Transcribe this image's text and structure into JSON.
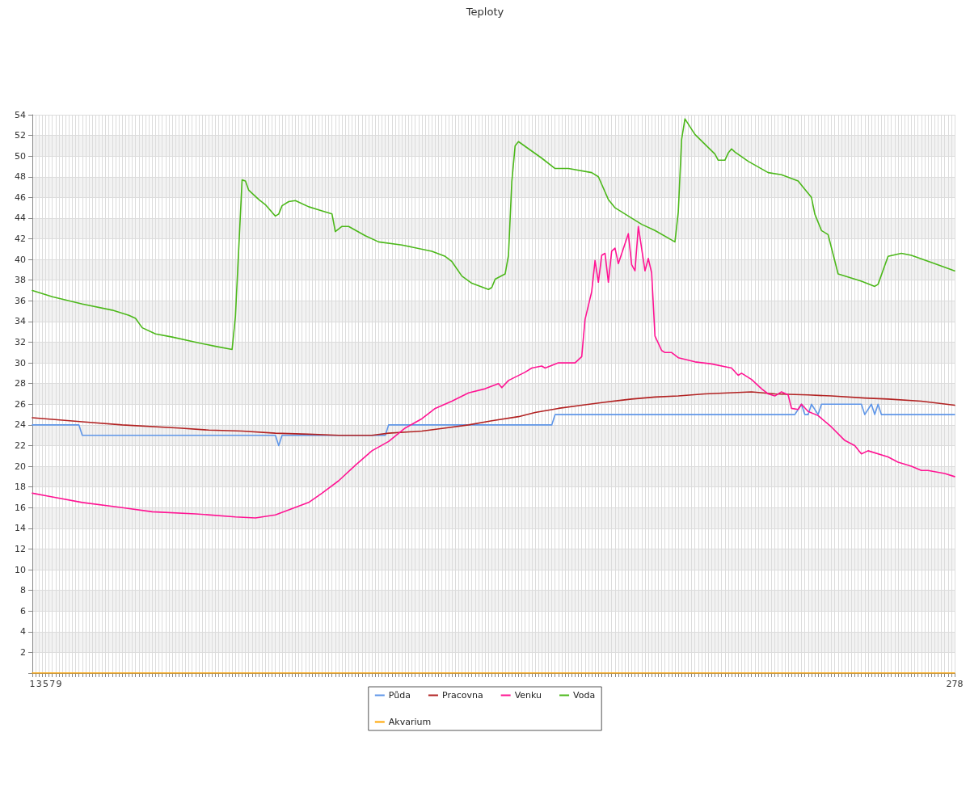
{
  "chart_data": {
    "type": "line",
    "title": "Teploty",
    "xlim": [
      1,
      278
    ],
    "ylim": [
      0,
      54
    ],
    "xticks": [
      1,
      {
        "value": 2,
        "label": null
      },
      3,
      {
        "value": 4,
        "label": null
      },
      5,
      {
        "value": 6,
        "label": null
      },
      7,
      {
        "value": 8,
        "label": null
      },
      9,
      {
        "value": 10,
        "label": null
      },
      {
        "value": 11,
        "label": null
      },
      {
        "value": 12,
        "label": null
      },
      {
        "value": 13,
        "label": null
      },
      {
        "value": 14,
        "label": null
      },
      {
        "value": 15,
        "label": null
      },
      {
        "value": 16,
        "label": null
      },
      {
        "value": 17,
        "label": null
      },
      {
        "value": 18,
        "label": null
      },
      {
        "value": 19,
        "label": null
      },
      {
        "value": 20,
        "label": null
      },
      {
        "value": 21,
        "label": null
      },
      {
        "value": 22,
        "label": null
      },
      {
        "value": 23,
        "label": null
      },
      {
        "value": 24,
        "label": null
      },
      {
        "value": 25,
        "label": null
      },
      {
        "value": 26,
        "label": null
      },
      {
        "value": 27,
        "label": null
      },
      {
        "value": 28,
        "label": null
      },
      {
        "value": 29,
        "label": null
      },
      {
        "value": 30,
        "label": null
      },
      {
        "value": 31,
        "label": null
      },
      {
        "value": 32,
        "label": null
      },
      {
        "value": 33,
        "label": null
      },
      {
        "value": 34,
        "label": null
      },
      {
        "value": 35,
        "label": null
      },
      {
        "value": 36,
        "label": null
      },
      {
        "value": 37,
        "label": null
      },
      {
        "value": 38,
        "label": null
      },
      {
        "value": 39,
        "label": null
      },
      {
        "value": 40,
        "label": null
      },
      {
        "value": 41,
        "label": null
      },
      {
        "value": 42,
        "label": null
      },
      {
        "value": 43,
        "label": null
      },
      {
        "value": 44,
        "label": null
      },
      {
        "value": 45,
        "label": null
      },
      {
        "value": 46,
        "label": null
      },
      {
        "value": 47,
        "label": null
      },
      {
        "value": 48,
        "label": null
      },
      {
        "value": 49,
        "label": null
      },
      {
        "value": 50,
        "label": null
      },
      {
        "value": 51,
        "label": null
      },
      {
        "value": 52,
        "label": null
      },
      {
        "value": 53,
        "label": null
      },
      {
        "value": 54,
        "label": null
      },
      {
        "value": 55,
        "label": null
      },
      {
        "value": 56,
        "label": null
      },
      {
        "value": 57,
        "label": null
      },
      {
        "value": 58,
        "label": null
      },
      {
        "value": 59,
        "label": null
      },
      {
        "value": 60,
        "label": null
      },
      {
        "value": 61,
        "label": null
      },
      {
        "value": 62,
        "label": null
      },
      {
        "value": 63,
        "label": null
      },
      {
        "value": 64,
        "label": null
      },
      {
        "value": 65,
        "label": null
      },
      {
        "value": 66,
        "label": null
      },
      {
        "value": 67,
        "label": null
      },
      {
        "value": 68,
        "label": null
      },
      {
        "value": 69,
        "label": null
      },
      {
        "value": 70,
        "label": null
      },
      {
        "value": 71,
        "label": null
      },
      {
        "value": 72,
        "label": null
      },
      {
        "value": 73,
        "label": null
      },
      {
        "value": 74,
        "label": null
      },
      {
        "value": 75,
        "label": null
      },
      {
        "value": 76,
        "label": null
      },
      {
        "value": 77,
        "label": null
      },
      {
        "value": 78,
        "label": null
      },
      {
        "value": 79,
        "label": null
      },
      {
        "value": 80,
        "label": null
      },
      {
        "value": 81,
        "label": null
      },
      {
        "value": 82,
        "label": null
      },
      {
        "value": 83,
        "label": null
      },
      {
        "value": 84,
        "label": null
      },
      {
        "value": 85,
        "label": null
      },
      {
        "value": 86,
        "label": null
      },
      {
        "value": 87,
        "label": null
      },
      {
        "value": 88,
        "label": null
      },
      {
        "value": 89,
        "label": null
      },
      {
        "value": 90,
        "label": null
      },
      {
        "value": 91,
        "label": null
      },
      {
        "value": 92,
        "label": null
      },
      {
        "value": 93,
        "label": null
      },
      {
        "value": 94,
        "label": null
      },
      {
        "value": 95,
        "label": null
      },
      {
        "value": 96,
        "label": null
      },
      {
        "value": 97,
        "label": null
      },
      {
        "value": 98,
        "label": null
      },
      {
        "value": 99,
        "label": null
      },
      {
        "value": 100,
        "label": null
      },
      {
        "value": 101,
        "label": null
      },
      {
        "value": 102,
        "label": null
      },
      {
        "value": 103,
        "label": null
      },
      {
        "value": 104,
        "label": null
      },
      {
        "value": 105,
        "label": null
      },
      {
        "value": 106,
        "label": null
      },
      {
        "value": 107,
        "label": null
      },
      {
        "value": 108,
        "label": null
      },
      {
        "value": 109,
        "label": null
      },
      {
        "value": 110,
        "label": null
      },
      {
        "value": 111,
        "label": null
      },
      {
        "value": 112,
        "label": null
      },
      {
        "value": 113,
        "label": null
      },
      {
        "value": 114,
        "label": null
      },
      {
        "value": 115,
        "label": null
      },
      {
        "value": 116,
        "label": null
      },
      {
        "value": 117,
        "label": null
      },
      {
        "value": 118,
        "label": null
      },
      {
        "value": 119,
        "label": null
      },
      {
        "value": 120,
        "label": null
      },
      {
        "value": 121,
        "label": null
      },
      {
        "value": 122,
        "label": null
      },
      {
        "value": 123,
        "label": null
      },
      {
        "value": 124,
        "label": null
      },
      {
        "value": 125,
        "label": null
      },
      {
        "value": 126,
        "label": null
      },
      {
        "value": 127,
        "label": null
      },
      {
        "value": 128,
        "label": null
      },
      {
        "value": 129,
        "label": null
      },
      {
        "value": 130,
        "label": null
      },
      {
        "value": 131,
        "label": null
      },
      {
        "value": 132,
        "label": null
      },
      {
        "value": 133,
        "label": null
      },
      {
        "value": 134,
        "label": null
      },
      {
        "value": 135,
        "label": null
      },
      {
        "value": 136,
        "label": null
      },
      {
        "value": 137,
        "label": null
      },
      {
        "value": 138,
        "label": null
      },
      {
        "value": 139,
        "label": null
      },
      {
        "value": 140,
        "label": null
      },
      {
        "value": 141,
        "label": null
      },
      {
        "value": 142,
        "label": null
      },
      {
        "value": 143,
        "label": null
      },
      {
        "value": 144,
        "label": null
      },
      {
        "value": 145,
        "label": null
      },
      {
        "value": 146,
        "label": null
      },
      {
        "value": 147,
        "label": null
      },
      {
        "value": 148,
        "label": null
      },
      {
        "value": 149,
        "label": null
      },
      {
        "value": 150,
        "label": null
      },
      {
        "value": 151,
        "label": null
      },
      {
        "value": 152,
        "label": null
      },
      {
        "value": 153,
        "label": null
      },
      {
        "value": 154,
        "label": null
      },
      {
        "value": 155,
        "label": null
      },
      {
        "value": 156,
        "label": null
      },
      {
        "value": 157,
        "label": null
      },
      {
        "value": 158,
        "label": null
      },
      {
        "value": 159,
        "label": null
      },
      {
        "value": 160,
        "label": null
      },
      {
        "value": 161,
        "label": null
      },
      {
        "value": 162,
        "label": null
      },
      {
        "value": 163,
        "label": null
      },
      {
        "value": 164,
        "label": null
      },
      {
        "value": 165,
        "label": null
      },
      {
        "value": 166,
        "label": null
      },
      {
        "value": 167,
        "label": null
      },
      {
        "value": 168,
        "label": null
      },
      {
        "value": 169,
        "label": null
      },
      {
        "value": 170,
        "label": null
      },
      {
        "value": 171,
        "label": null
      },
      {
        "value": 172,
        "label": null
      },
      {
        "value": 173,
        "label": null
      },
      {
        "value": 174,
        "label": null
      },
      {
        "value": 175,
        "label": null
      },
      {
        "value": 176,
        "label": null
      },
      {
        "value": 177,
        "label": null
      },
      {
        "value": 178,
        "label": null
      },
      {
        "value": 179,
        "label": null
      },
      {
        "value": 180,
        "label": null
      },
      {
        "value": 181,
        "label": null
      },
      {
        "value": 182,
        "label": null
      },
      {
        "value": 183,
        "label": null
      },
      {
        "value": 184,
        "label": null
      },
      {
        "value": 185,
        "label": null
      },
      {
        "value": 186,
        "label": null
      },
      {
        "value": 187,
        "label": null
      },
      {
        "value": 188,
        "label": null
      },
      {
        "value": 189,
        "label": null
      },
      {
        "value": 190,
        "label": null
      },
      {
        "value": 191,
        "label": null
      },
      {
        "value": 192,
        "label": null
      },
      {
        "value": 193,
        "label": null
      },
      {
        "value": 194,
        "label": null
      },
      {
        "value": 195,
        "label": null
      },
      {
        "value": 196,
        "label": null
      },
      {
        "value": 197,
        "label": null
      },
      {
        "value": 198,
        "label": null
      },
      {
        "value": 199,
        "label": null
      },
      {
        "value": 200,
        "label": null
      },
      {
        "value": 201,
        "label": null
      },
      {
        "value": 202,
        "label": null
      },
      {
        "value": 203,
        "label": null
      },
      {
        "value": 204,
        "label": null
      },
      {
        "value": 205,
        "label": null
      },
      {
        "value": 206,
        "label": null
      },
      {
        "value": 207,
        "label": null
      },
      {
        "value": 208,
        "label": null
      },
      {
        "value": 209,
        "label": null
      },
      {
        "value": 210,
        "label": null
      },
      {
        "value": 211,
        "label": null
      },
      {
        "value": 212,
        "label": null
      },
      {
        "value": 213,
        "label": null
      },
      {
        "value": 214,
        "label": null
      },
      {
        "value": 215,
        "label": null
      },
      {
        "value": 216,
        "label": null
      },
      {
        "value": 217,
        "label": null
      },
      {
        "value": 218,
        "label": null
      },
      {
        "value": 219,
        "label": null
      },
      {
        "value": 220,
        "label": null
      },
      {
        "value": 221,
        "label": null
      },
      {
        "value": 222,
        "label": null
      },
      {
        "value": 223,
        "label": null
      },
      {
        "value": 224,
        "label": null
      },
      {
        "value": 225,
        "label": null
      },
      {
        "value": 226,
        "label": null
      },
      {
        "value": 227,
        "label": null
      },
      {
        "value": 228,
        "label": null
      },
      {
        "value": 229,
        "label": null
      },
      {
        "value": 230,
        "label": null
      },
      {
        "value": 231,
        "label": null
      },
      {
        "value": 232,
        "label": null
      },
      {
        "value": 233,
        "label": null
      },
      {
        "value": 234,
        "label": null
      },
      {
        "value": 235,
        "label": null
      },
      {
        "value": 236,
        "label": null
      },
      {
        "value": 237,
        "label": null
      },
      {
        "value": 238,
        "label": null
      },
      {
        "value": 239,
        "label": null
      },
      {
        "value": 240,
        "label": null
      },
      {
        "value": 241,
        "label": null
      },
      {
        "value": 242,
        "label": null
      },
      {
        "value": 243,
        "label": null
      },
      {
        "value": 244,
        "label": null
      },
      {
        "value": 245,
        "label": null
      },
      {
        "value": 246,
        "label": null
      },
      {
        "value": 247,
        "label": null
      },
      {
        "value": 248,
        "label": null
      },
      {
        "value": 249,
        "label": null
      },
      {
        "value": 250,
        "label": null
      },
      {
        "value": 251,
        "label": null
      },
      {
        "value": 252,
        "label": null
      },
      {
        "value": 253,
        "label": null
      },
      {
        "value": 254,
        "label": null
      },
      {
        "value": 255,
        "label": null
      },
      {
        "value": 256,
        "label": null
      },
      {
        "value": 257,
        "label": null
      },
      {
        "value": 258,
        "label": null
      },
      {
        "value": 259,
        "label": null
      },
      {
        "value": 260,
        "label": null
      },
      {
        "value": 261,
        "label": null
      },
      {
        "value": 262,
        "label": null
      },
      {
        "value": 263,
        "label": null
      },
      {
        "value": 264,
        "label": null
      },
      {
        "value": 265,
        "label": null
      },
      {
        "value": 266,
        "label": null
      },
      {
        "value": 267,
        "label": null
      },
      {
        "value": 268,
        "label": null
      },
      {
        "value": 269,
        "label": null
      },
      {
        "value": 270,
        "label": null
      },
      {
        "value": 271,
        "label": null
      },
      {
        "value": 272,
        "label": null
      },
      {
        "value": 273,
        "label": null
      },
      {
        "value": 274,
        "label": null
      },
      {
        "value": 275,
        "label": null
      },
      {
        "value": 276,
        "label": null
      },
      {
        "value": 277,
        "label": null
      },
      278
    ],
    "yticks": [
      {
        "value": 0,
        "label": null
      },
      2,
      4,
      6,
      8,
      10,
      12,
      14,
      16,
      18,
      20,
      22,
      24,
      26,
      28,
      30,
      32,
      34,
      36,
      38,
      40,
      42,
      44,
      46,
      48,
      50,
      52,
      54
    ],
    "grid": true,
    "legend": "bottom",
    "marker": "none",
    "line_style": "solid",
    "series": [
      {
        "name": "Půda",
        "color": "#5f96e8",
        "x": [
          1,
          15,
          16,
          74,
          75,
          76,
          107,
          108,
          157,
          158,
          230,
          232,
          233,
          234,
          235,
          237,
          238,
          250,
          251,
          253,
          254,
          255,
          256,
          278
        ],
        "values": [
          24,
          24,
          23,
          23,
          22,
          23,
          23,
          24,
          24,
          25,
          25,
          26,
          25,
          25,
          26,
          25,
          26,
          26,
          25,
          26,
          25,
          26,
          25,
          25
        ]
      },
      {
        "name": "Voda",
        "color": "#4cb81a",
        "x": [
          1,
          7,
          16,
          25,
          30,
          32,
          34,
          38,
          43,
          50,
          56,
          61,
          62,
          64,
          65,
          66,
          69,
          71,
          74,
          75,
          76,
          78,
          80,
          84,
          87,
          91,
          92,
          94,
          96,
          101,
          105,
          112,
          121,
          125,
          127,
          130,
          133,
          138,
          139,
          140,
          143,
          144,
          145,
          146,
          147,
          154,
          158,
          162,
          169,
          171,
          174,
          176,
          184,
          188,
          194,
          195,
          196,
          197,
          200,
          206,
          207,
          209,
          210,
          211,
          212,
          216,
          222,
          226,
          231,
          233,
          235,
          236,
          238,
          240,
          243,
          250,
          254,
          255,
          258,
          262,
          265,
          272,
          278
        ],
        "values": [
          37.0,
          36.4,
          35.7,
          35.1,
          34.6,
          34.3,
          33.4,
          32.8,
          32.5,
          32.0,
          31.6,
          31.3,
          34.5,
          47.7,
          47.6,
          46.7,
          45.8,
          45.3,
          44.2,
          44.4,
          45.2,
          45.6,
          45.7,
          45.1,
          44.8,
          44.4,
          42.7,
          43.2,
          43.2,
          42.3,
          41.7,
          41.4,
          40.8,
          40.3,
          39.8,
          38.4,
          37.7,
          37.1,
          37.3,
          38.1,
          38.6,
          40.4,
          47.5,
          51.0,
          51.4,
          49.8,
          48.8,
          48.8,
          48.4,
          48.0,
          45.8,
          45.0,
          43.4,
          42.8,
          41.7,
          44.6,
          51.6,
          53.6,
          52.1,
          50.2,
          49.6,
          49.6,
          50.3,
          50.7,
          50.4,
          49.5,
          48.4,
          48.2,
          47.6,
          46.8,
          46.0,
          44.4,
          42.8,
          42.4,
          38.6,
          37.9,
          37.4,
          37.6,
          40.3,
          40.6,
          40.4,
          39.6,
          38.9
        ]
      },
      {
        "name": "Pracovna",
        "color": "#b22222",
        "x": [
          1,
          16,
          28,
          45,
          54,
          64,
          74,
          84,
          93,
          103,
          108,
          118,
          125,
          132,
          139,
          147,
          152,
          159,
          166,
          173,
          181,
          188,
          195,
          203,
          210,
          217,
          224,
          234,
          241,
          251,
          258,
          268,
          278
        ],
        "values": [
          24.7,
          24.3,
          24.0,
          23.7,
          23.5,
          23.4,
          23.2,
          23.1,
          23.0,
          23.0,
          23.2,
          23.4,
          23.7,
          24.0,
          24.4,
          24.8,
          25.2,
          25.6,
          25.9,
          26.2,
          26.5,
          26.7,
          26.8,
          27.0,
          27.1,
          27.2,
          27.0,
          26.9,
          26.8,
          26.6,
          26.5,
          26.3,
          25.9
        ]
      },
      {
        "name": "Akvarium",
        "color": "#ffa500",
        "x": [
          1,
          278
        ],
        "values": [
          0,
          0
        ]
      },
      {
        "name": "Venku",
        "color": "#ff1493",
        "x": [
          1,
          6,
          16,
          28,
          37,
          50,
          62,
          68,
          74,
          79,
          84,
          88,
          93,
          98,
          103,
          108,
          113,
          118,
          122,
          127,
          132,
          137,
          141,
          142,
          144,
          149,
          151,
          154,
          155,
          159,
          164,
          166,
          167,
          169,
          170,
          171,
          172,
          173,
          174,
          175,
          176,
          177,
          180,
          181,
          182,
          183,
          185,
          186,
          187,
          188,
          190,
          191,
          193,
          195,
          200,
          205,
          211,
          213,
          214,
          217,
          220,
          222,
          224,
          226,
          228,
          229,
          231,
          232,
          234,
          237,
          241,
          245,
          248,
          250,
          252,
          258,
          261,
          265,
          268,
          270,
          275,
          278
        ],
        "values": [
          17.4,
          17.1,
          16.5,
          16.0,
          15.6,
          15.4,
          15.1,
          15.0,
          15.3,
          15.9,
          16.5,
          17.4,
          18.6,
          20.1,
          21.5,
          22.4,
          23.7,
          24.6,
          25.6,
          26.3,
          27.1,
          27.5,
          28.0,
          27.6,
          28.3,
          29.1,
          29.5,
          29.7,
          29.5,
          30.0,
          30.0,
          30.6,
          34.2,
          36.9,
          39.9,
          37.8,
          40.4,
          40.6,
          37.8,
          40.8,
          41.1,
          39.6,
          42.5,
          39.5,
          38.9,
          43.2,
          38.9,
          40.1,
          38.7,
          32.6,
          31.2,
          31.0,
          31.0,
          30.5,
          30.1,
          29.9,
          29.5,
          28.8,
          29.0,
          28.4,
          27.5,
          27.0,
          26.8,
          27.2,
          26.9,
          25.6,
          25.5,
          26.0,
          25.3,
          24.9,
          23.8,
          22.5,
          22.0,
          21.2,
          21.5,
          20.9,
          20.4,
          20.0,
          19.6,
          19.6,
          19.3,
          19.0
        ]
      }
    ]
  }
}
